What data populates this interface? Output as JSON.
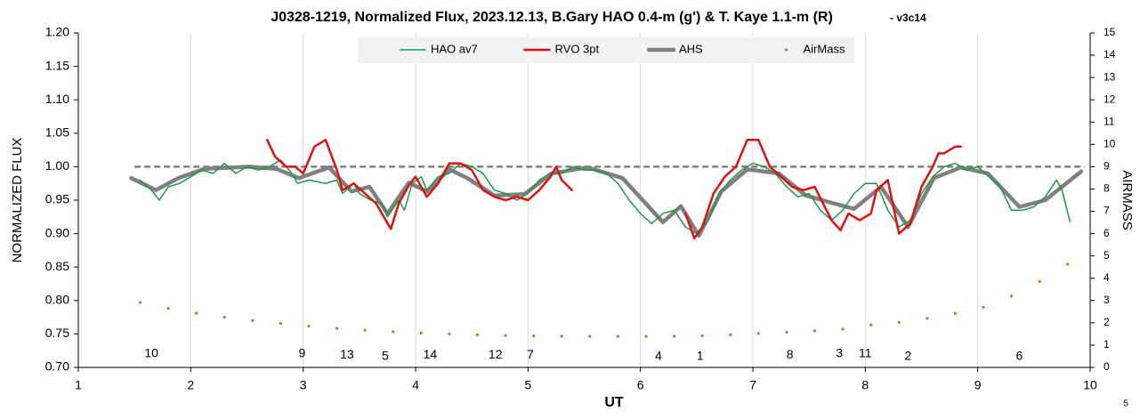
{
  "chart_data": {
    "type": "line",
    "title": "J0328-1219, Normalized Flux, 2023.12.13, B.Gary HAO 0.4-m (g') & T. Kaye 1.1-m (R)",
    "title_suffix": "- v3c14",
    "xlabel": "UT",
    "ylabel": "NORMALIZED FLUX",
    "y2label": "AIRMASS",
    "corner_label": "5",
    "xlim": [
      1,
      10
    ],
    "xticks": [
      1,
      2,
      3,
      4,
      5,
      6,
      7,
      8,
      9,
      10
    ],
    "ylim": [
      0.7,
      1.2
    ],
    "yticks": [
      {
        "value": 0.7,
        "label": "0.70"
      },
      {
        "value": 0.75,
        "label": "0.75"
      },
      {
        "value": 0.8,
        "label": "0.80"
      },
      {
        "value": 0.85,
        "label": "0.85"
      },
      {
        "value": 0.9,
        "label": "0.90"
      },
      {
        "value": 0.95,
        "label": "0.95"
      },
      {
        "value": 1.0,
        "label": "1.00"
      },
      {
        "value": 1.05,
        "label": "1.05"
      },
      {
        "value": 1.1,
        "label": "1.10"
      },
      {
        "value": 1.15,
        "label": "1.15"
      },
      {
        "value": 1.2,
        "label": "1.20"
      }
    ],
    "y2lim": [
      0,
      15
    ],
    "y2ticks": [
      0,
      1,
      2,
      3,
      4,
      5,
      6,
      7,
      8,
      9,
      10,
      11,
      12,
      13,
      14,
      15
    ],
    "xgrid": true,
    "reference_line": {
      "y": 1.0,
      "color": "#808080"
    },
    "legend": "top",
    "series": [
      {
        "name": "HAO av7",
        "color": "#1a9a45",
        "width": 1.5,
        "x": [
          1.55,
          1.65,
          1.72,
          1.8,
          1.9,
          2.0,
          2.1,
          2.2,
          2.3,
          2.4,
          2.5,
          2.6,
          2.7,
          2.8,
          2.9,
          2.95,
          3.05,
          3.2,
          3.3,
          3.35,
          3.45,
          3.5,
          3.6,
          3.7,
          3.75,
          3.85,
          3.9,
          3.97,
          4.05,
          4.1,
          4.2,
          4.3,
          4.4,
          4.5,
          4.6,
          4.7,
          4.8,
          4.9,
          5.0,
          5.1,
          5.2,
          5.3,
          5.4,
          5.5,
          5.6,
          5.7,
          5.8,
          5.9,
          6.0,
          6.1,
          6.2,
          6.3,
          6.4,
          6.5,
          6.6,
          6.7,
          6.8,
          6.9,
          7.0,
          7.1,
          7.2,
          7.3,
          7.4,
          7.5,
          7.6,
          7.7,
          7.8,
          7.9,
          8.0,
          8.1,
          8.2,
          8.3,
          8.4,
          8.5,
          8.6,
          8.7,
          8.8,
          8.9,
          9.0,
          9.1,
          9.2,
          9.3,
          9.4,
          9.5,
          9.6,
          9.7,
          9.75,
          9.82
        ],
        "values": [
          0.98,
          0.965,
          0.95,
          0.97,
          0.975,
          0.985,
          0.995,
          0.99,
          1.005,
          0.99,
          1.0,
          0.995,
          1.0,
          1.01,
          0.99,
          0.975,
          0.98,
          0.975,
          0.98,
          0.96,
          0.975,
          0.96,
          0.95,
          0.945,
          0.925,
          0.95,
          0.935,
          0.975,
          0.985,
          0.965,
          0.985,
          0.99,
          1.005,
          1.0,
          0.99,
          0.965,
          0.96,
          0.95,
          0.96,
          0.98,
          0.99,
          0.99,
          1.0,
          0.995,
          0.995,
          0.99,
          0.975,
          0.95,
          0.93,
          0.915,
          0.93,
          0.935,
          0.91,
          0.9,
          0.92,
          0.96,
          0.98,
          0.995,
          1.005,
          1.0,
          0.99,
          0.97,
          0.955,
          0.96,
          0.935,
          0.92,
          0.935,
          0.96,
          0.975,
          0.975,
          0.935,
          0.91,
          0.92,
          0.96,
          0.985,
          1.0,
          1.005,
          0.995,
          1.0,
          0.985,
          0.97,
          0.935,
          0.935,
          0.94,
          0.955,
          0.98,
          0.965,
          0.918
        ]
      },
      {
        "name": "RVO 3pt",
        "color": "#e01010",
        "width": 2.5,
        "x": [
          2.68,
          2.75,
          2.85,
          2.93,
          3.0,
          3.05,
          3.1,
          3.2,
          3.3,
          3.35,
          3.45,
          3.55,
          3.65,
          3.7,
          3.78,
          3.85,
          3.95,
          4.0,
          4.1,
          4.2,
          4.3,
          4.4,
          4.5,
          4.6,
          4.7,
          4.8,
          4.9,
          5.0,
          5.1,
          5.2,
          5.25,
          5.3,
          5.39,
          5.9,
          6.4,
          6.48,
          6.55,
          6.65,
          6.75,
          6.85,
          6.95,
          7.05,
          7.15,
          7.25,
          7.35,
          7.45,
          7.55,
          7.7,
          7.78,
          7.85,
          7.95,
          8.05,
          8.1,
          8.2,
          8.3,
          8.4,
          8.5,
          8.6,
          8.65,
          8.7,
          8.8,
          8.85
        ],
        "values": [
          1.04,
          1.015,
          1.0,
          1.0,
          0.99,
          1.01,
          1.03,
          1.04,
          0.995,
          0.965,
          0.975,
          0.96,
          0.945,
          0.93,
          0.907,
          0.945,
          0.975,
          0.985,
          0.955,
          0.975,
          1.005,
          1.005,
          0.995,
          0.965,
          0.955,
          0.95,
          0.955,
          0.95,
          0.965,
          0.985,
          1.0,
          0.98,
          0.965,
          null,
          0.93,
          0.893,
          0.91,
          0.96,
          0.985,
          1.0,
          1.04,
          1.04,
          1.0,
          0.985,
          0.97,
          0.965,
          0.97,
          0.92,
          0.905,
          0.93,
          0.92,
          0.93,
          0.965,
          0.98,
          0.9,
          0.915,
          0.97,
          1.0,
          1.02,
          1.02,
          1.03,
          1.03
        ]
      },
      {
        "name": "AHS",
        "color": "#808080",
        "width": 4.5,
        "x": [
          1.47,
          1.69,
          1.89,
          2.12,
          2.52,
          2.76,
          2.96,
          3.23,
          3.43,
          3.59,
          3.75,
          3.94,
          4.1,
          4.3,
          4.46,
          4.7,
          4.97,
          5.21,
          5.53,
          5.84,
          6.2,
          6.36,
          6.52,
          6.72,
          6.95,
          7.23,
          7.47,
          7.7,
          7.9,
          8.14,
          8.38,
          8.61,
          8.85,
          9.09,
          9.37,
          9.6,
          9.92
        ],
        "values": [
          0.983,
          0.965,
          0.983,
          0.997,
          1.0,
          0.997,
          0.983,
          0.999,
          0.963,
          0.97,
          0.93,
          0.976,
          0.963,
          0.996,
          0.983,
          0.957,
          0.959,
          0.99,
          0.999,
          0.983,
          0.917,
          0.941,
          0.897,
          0.963,
          0.996,
          0.99,
          0.957,
          0.946,
          0.937,
          0.97,
          0.91,
          0.983,
          0.999,
          0.99,
          0.94,
          0.95,
          0.993
        ]
      },
      {
        "name": "AirMass",
        "color": "#c8761e",
        "marker": "dot",
        "axis": "y2",
        "x": [
          1.55,
          1.8,
          2.05,
          2.3,
          2.55,
          2.8,
          3.05,
          3.3,
          3.55,
          3.8,
          4.05,
          4.3,
          4.55,
          4.8,
          5.05,
          5.3,
          5.55,
          5.8,
          6.05,
          6.3,
          6.55,
          6.8,
          7.05,
          7.3,
          7.55,
          7.8,
          8.05,
          8.3,
          8.55,
          8.8,
          9.05,
          9.3,
          9.55,
          9.8
        ],
        "values": [
          2.91,
          2.65,
          2.43,
          2.25,
          2.1,
          1.97,
          1.85,
          1.75,
          1.67,
          1.6,
          1.54,
          1.5,
          1.46,
          1.43,
          1.41,
          1.4,
          1.39,
          1.39,
          1.39,
          1.4,
          1.42,
          1.46,
          1.52,
          1.58,
          1.64,
          1.72,
          1.9,
          2.02,
          2.2,
          2.42,
          2.7,
          3.2,
          3.85,
          4.63
        ]
      }
    ],
    "annotations": [
      {
        "text": "10",
        "x": 1.65,
        "y": 0.72
      },
      {
        "text": "9",
        "x": 2.99,
        "y": 0.72
      },
      {
        "text": "13",
        "x": 3.39,
        "y": 0.718
      },
      {
        "text": "5",
        "x": 3.73,
        "y": 0.716
      },
      {
        "text": "14",
        "x": 4.13,
        "y": 0.718
      },
      {
        "text": "12",
        "x": 4.71,
        "y": 0.718
      },
      {
        "text": "7",
        "x": 5.02,
        "y": 0.718
      },
      {
        "text": "4",
        "x": 6.16,
        "y": 0.716
      },
      {
        "text": "1",
        "x": 6.53,
        "y": 0.716
      },
      {
        "text": "8",
        "x": 7.33,
        "y": 0.718
      },
      {
        "text": "3",
        "x": 7.77,
        "y": 0.72
      },
      {
        "text": "11",
        "x": 8.0,
        "y": 0.72
      },
      {
        "text": "2",
        "x": 8.38,
        "y": 0.716
      },
      {
        "text": "6",
        "x": 9.37,
        "y": 0.716
      }
    ]
  }
}
